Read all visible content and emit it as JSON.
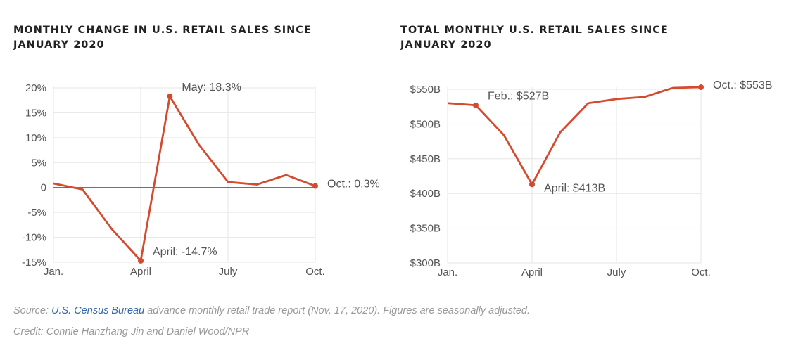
{
  "chart_data": [
    {
      "type": "line",
      "title_line1": "MONTHLY CHANGE IN U.S. RETAIL SALES SINCE",
      "title_line2": "JANUARY 2020",
      "x": [
        1,
        2,
        3,
        4,
        5,
        6,
        7,
        8,
        9,
        10
      ],
      "xticks": [
        "Jan.",
        "April",
        "July",
        "Oct."
      ],
      "xtick_positions": [
        1,
        4,
        7,
        10
      ],
      "yticks": [
        "20%",
        "15%",
        "10%",
        "5%",
        "0",
        "-5%",
        "-10%",
        "-15%"
      ],
      "ytick_values": [
        20,
        15,
        10,
        5,
        0,
        -5,
        -10,
        -15
      ],
      "ylim": [
        -15,
        20
      ],
      "values": [
        0.8,
        -0.4,
        -8.3,
        -14.7,
        18.3,
        8.6,
        1.1,
        0.6,
        2.5,
        0.3
      ],
      "series_color": "#d44a2f",
      "zero_line": true,
      "annotations": [
        {
          "x": 5,
          "y": 18.3,
          "text": "May: 18.3%",
          "anchor": "right-up"
        },
        {
          "x": 4,
          "y": -14.7,
          "text": "April: -14.7%",
          "anchor": "right-up"
        },
        {
          "x": 10,
          "y": 0.3,
          "text": "Oct.: 0.3%",
          "anchor": "right"
        }
      ]
    },
    {
      "type": "line",
      "title_line1": "TOTAL MONTHLY U.S. RETAIL SALES SINCE",
      "title_line2": "JANUARY 2020",
      "x": [
        1,
        2,
        3,
        4,
        5,
        6,
        7,
        8,
        9,
        10
      ],
      "xticks": [
        "Jan.",
        "April",
        "July",
        "Oct."
      ],
      "xtick_positions": [
        1,
        4,
        7,
        10
      ],
      "yticks": [
        "$550B",
        "$500B",
        "$450B",
        "$400B",
        "$350B",
        "$300B"
      ],
      "ytick_values": [
        550,
        500,
        450,
        400,
        350,
        300
      ],
      "ylim": [
        300,
        550
      ],
      "values": [
        530,
        527,
        484,
        413,
        488,
        530,
        536,
        539,
        552,
        553
      ],
      "series_color": "#d44a2f",
      "zero_line": false,
      "annotations": [
        {
          "x": 2,
          "y": 527,
          "text": "Feb.: $527B",
          "anchor": "right-up"
        },
        {
          "x": 4,
          "y": 413,
          "text": "April: $413B",
          "anchor": "right-down"
        },
        {
          "x": 10,
          "y": 553,
          "text": "Oct.: $553B",
          "anchor": "right"
        }
      ]
    }
  ],
  "footer": {
    "source_prefix": "Source: ",
    "source_link": "U.S. Census Bureau",
    "source_suffix": " advance monthly retail trade report (Nov. 17, 2020). Figures are seasonally adjusted.",
    "credit": "Credit: Connie Hanzhang Jin and Daniel Wood/NPR"
  }
}
